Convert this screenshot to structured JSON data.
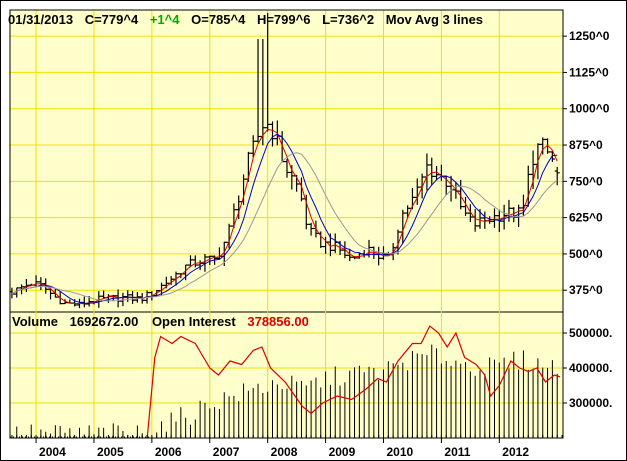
{
  "colors": {
    "background": "#ffffcc",
    "grid": "#f0e000",
    "border": "#000000",
    "price_bars": "#000000",
    "ma_fast": "#dd0000",
    "ma_mid": "#0000cc",
    "ma_slow": "#999999",
    "volume_bars": "#000000",
    "open_interest": "#dd0000",
    "up_change": "#00aa00"
  },
  "header": {
    "date": "01/31/2013",
    "close": "C=779^4",
    "change": "+1^4",
    "open": "O=785^4",
    "high": "H=799^6",
    "low": "L=736^2",
    "study": "Mov Avg 3 lines"
  },
  "volume_header": {
    "volume_label": "Volume",
    "volume_value": "1692672.00",
    "oi_label": "Open Interest",
    "oi_value": "378856.00"
  },
  "chart_data": [
    {
      "type": "ohlc",
      "panel": "price",
      "x_range": [
        2003.55,
        2013.1
      ],
      "ylim": [
        300,
        1340
      ],
      "y_ticks": [
        375,
        500,
        625,
        750,
        875,
        1000,
        1125,
        1250
      ],
      "y_tick_labels": [
        "375^0",
        "500^0",
        "625^0",
        "750^0",
        "875^0",
        "1000^0",
        "1125^0",
        "1250^0"
      ],
      "x_ticks": [
        2004,
        2005,
        2006,
        2007,
        2008,
        2009,
        2010,
        2011,
        2012
      ],
      "x_tick_labels": [
        "2004",
        "2005",
        "2006",
        "2007",
        "2008",
        "2009",
        "2010",
        "2011",
        "2012"
      ],
      "grid": true,
      "anchors": [
        [
          2003.6,
          370
        ],
        [
          2003.9,
          400
        ],
        [
          2004.1,
          390
        ],
        [
          2004.3,
          355
        ],
        [
          2004.5,
          330
        ],
        [
          2004.75,
          325
        ],
        [
          2004.95,
          340
        ],
        [
          2005.2,
          345
        ],
        [
          2005.5,
          350
        ],
        [
          2005.8,
          345
        ],
        [
          2006.0,
          365
        ],
        [
          2006.3,
          410
        ],
        [
          2006.6,
          460
        ],
        [
          2006.9,
          480
        ],
        [
          2007.1,
          480
        ],
        [
          2007.3,
          560
        ],
        [
          2007.5,
          700
        ],
        [
          2007.65,
          810
        ],
        [
          2007.8,
          890
        ],
        [
          2007.95,
          960
        ],
        [
          2008.1,
          920
        ],
        [
          2008.3,
          800
        ],
        [
          2008.55,
          720
        ],
        [
          2008.7,
          580
        ],
        [
          2008.9,
          540
        ],
        [
          2009.2,
          520
        ],
        [
          2009.45,
          480
        ],
        [
          2009.7,
          520
        ],
        [
          2009.95,
          490
        ],
        [
          2010.1,
          480
        ],
        [
          2010.3,
          630
        ],
        [
          2010.55,
          700
        ],
        [
          2010.75,
          800
        ],
        [
          2010.95,
          770
        ],
        [
          2011.15,
          740
        ],
        [
          2011.35,
          650
        ],
        [
          2011.55,
          600
        ],
        [
          2011.8,
          620
        ],
        [
          2012.1,
          640
        ],
        [
          2012.4,
          640
        ],
        [
          2012.55,
          820
        ],
        [
          2012.7,
          880
        ],
        [
          2012.9,
          830
        ],
        [
          2013.05,
          780
        ]
      ],
      "last_bar": {
        "open": 785.5,
        "high": 799.75,
        "low": 736.25,
        "close": 779.5
      },
      "moving_averages": [
        {
          "color_key": "ma_fast",
          "periods": 3
        },
        {
          "color_key": "ma_mid",
          "periods": 6
        },
        {
          "color_key": "ma_slow",
          "periods": 12
        }
      ]
    },
    {
      "type": "bar+line",
      "panel": "volume",
      "ylim": [
        200000,
        560000
      ],
      "y_ticks": [
        300000,
        400000,
        500000
      ],
      "y_tick_labels": [
        "300000.",
        "400000.",
        "500000."
      ],
      "volume_anchors": [
        [
          2003.6,
          212000
        ],
        [
          2005.9,
          214000
        ],
        [
          2006.2,
          240000
        ],
        [
          2006.7,
          270000
        ],
        [
          2007.0,
          300000
        ],
        [
          2007.5,
          325000
        ],
        [
          2007.9,
          345000
        ],
        [
          2008.2,
          360000
        ],
        [
          2008.6,
          340000
        ],
        [
          2009.0,
          370000
        ],
        [
          2009.5,
          385000
        ],
        [
          2010.0,
          390000
        ],
        [
          2010.4,
          420000
        ],
        [
          2010.9,
          440000
        ],
        [
          2011.4,
          410000
        ],
        [
          2011.9,
          400000
        ],
        [
          2012.4,
          425000
        ],
        [
          2013.0,
          400000
        ]
      ],
      "open_interest": [
        [
          2005.92,
          200000
        ],
        [
          2006.05,
          430000
        ],
        [
          2006.15,
          490000
        ],
        [
          2006.35,
          470000
        ],
        [
          2006.5,
          490000
        ],
        [
          2006.75,
          470000
        ],
        [
          2007.0,
          400000
        ],
        [
          2007.15,
          380000
        ],
        [
          2007.35,
          420000
        ],
        [
          2007.55,
          410000
        ],
        [
          2007.75,
          450000
        ],
        [
          2007.9,
          460000
        ],
        [
          2008.05,
          400000
        ],
        [
          2008.3,
          360000
        ],
        [
          2008.6,
          290000
        ],
        [
          2008.75,
          270000
        ],
        [
          2008.95,
          300000
        ],
        [
          2009.2,
          320000
        ],
        [
          2009.45,
          310000
        ],
        [
          2009.7,
          340000
        ],
        [
          2009.9,
          370000
        ],
        [
          2010.05,
          360000
        ],
        [
          2010.25,
          420000
        ],
        [
          2010.5,
          470000
        ],
        [
          2010.65,
          470000
        ],
        [
          2010.8,
          520000
        ],
        [
          2010.95,
          500000
        ],
        [
          2011.1,
          460000
        ],
        [
          2011.25,
          500000
        ],
        [
          2011.4,
          430000
        ],
        [
          2011.6,
          410000
        ],
        [
          2011.75,
          380000
        ],
        [
          2011.85,
          320000
        ],
        [
          2012.0,
          350000
        ],
        [
          2012.2,
          420000
        ],
        [
          2012.35,
          400000
        ],
        [
          2012.5,
          390000
        ],
        [
          2012.65,
          400000
        ],
        [
          2012.8,
          360000
        ],
        [
          2012.95,
          380000
        ],
        [
          2013.05,
          375000
        ]
      ]
    }
  ]
}
